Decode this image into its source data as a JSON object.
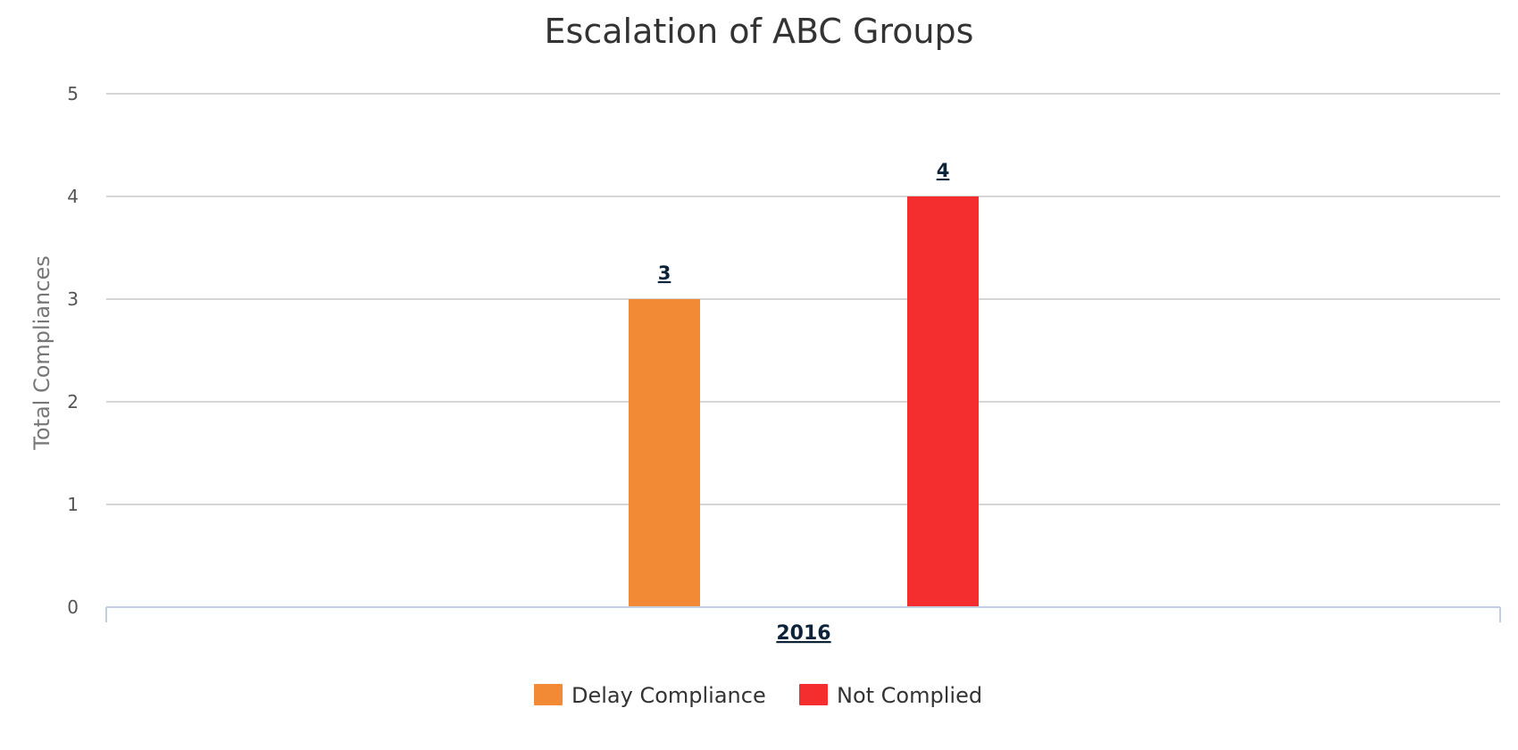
{
  "chart_data": {
    "type": "bar",
    "title": "Escalation of ABC Groups",
    "xlabel": "",
    "ylabel": "Total Compliances",
    "categories": [
      "2016"
    ],
    "yticks": [
      "0",
      "1",
      "2",
      "3",
      "4",
      "5"
    ],
    "ylim": [
      0,
      5
    ],
    "grid": true,
    "legend_position": "bottom",
    "series": [
      {
        "name": "Delay Compliance",
        "values": [
          3
        ],
        "color": "#f28a35",
        "label": "3"
      },
      {
        "name": "Not Complied",
        "values": [
          4
        ],
        "color": "#f42e2e",
        "label": "4"
      }
    ]
  }
}
